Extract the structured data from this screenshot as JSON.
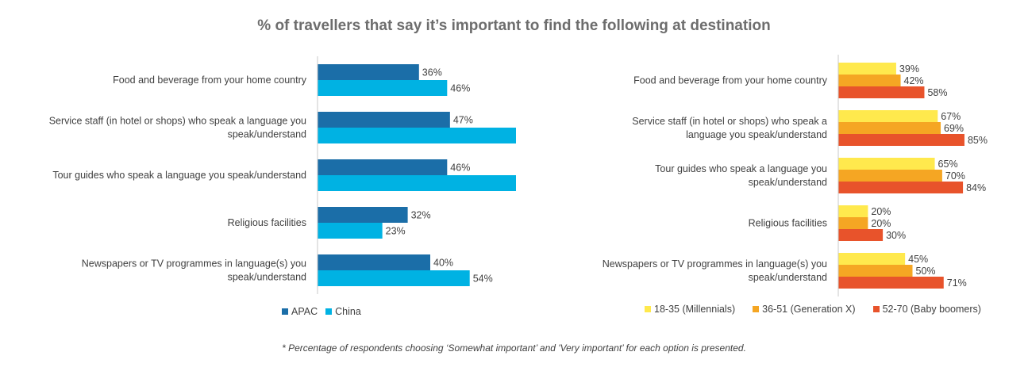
{
  "title": "% of travellers that say it’s important to find the following at destination",
  "footnote": "* Percentage of respondents choosing ‘Somewhat important’ and 'Very important’ for each option is presented.",
  "chart_data": [
    {
      "type": "bar",
      "orientation": "horizontal",
      "categories": [
        [
          "Food and beverage from your home country"
        ],
        [
          "Service staff (in hotel or shops) who speak a language you",
          "speak/understand"
        ],
        [
          "Tour guides who speak a language you speak/understand"
        ],
        [
          "Religious facilities"
        ],
        [
          "Newspapers or TV programmes in language(s) you",
          "speak/understand"
        ]
      ],
      "series": [
        {
          "name": "APAC",
          "color": "#1b6ea8",
          "values": [
            36,
            47,
            46,
            32,
            40
          ]
        },
        {
          "name": "China",
          "color": "#00b2e3",
          "values": [
            46,
            73,
            72,
            23,
            54
          ]
        }
      ],
      "value_suffix": "%",
      "legend_position": "bottom",
      "xlim": [
        0,
        100
      ],
      "grid": false
    },
    {
      "type": "bar",
      "orientation": "horizontal",
      "categories": [
        [
          "Food and beverage from your home country"
        ],
        [
          "Service staff (in hotel or shops) who speak a",
          "language you speak/understand"
        ],
        [
          "Tour guides who speak a language you",
          "speak/understand"
        ],
        [
          "Religious facilities"
        ],
        [
          "Newspapers or TV programmes in language(s) you",
          "speak/understand"
        ]
      ],
      "series": [
        {
          "name": "18-35 (Millennials)",
          "color": "#ffe94d",
          "values": [
            39,
            67,
            65,
            20,
            45
          ]
        },
        {
          "name": "36-51 (Generation X)",
          "color": "#f5a623",
          "values": [
            42,
            69,
            70,
            20,
            50
          ]
        },
        {
          "name": "52-70 (Baby boomers)",
          "color": "#e8532b",
          "values": [
            58,
            85,
            84,
            30,
            71
          ]
        }
      ],
      "value_suffix": "%",
      "legend_position": "bottom",
      "xlim": [
        0,
        100
      ],
      "grid": false
    }
  ]
}
